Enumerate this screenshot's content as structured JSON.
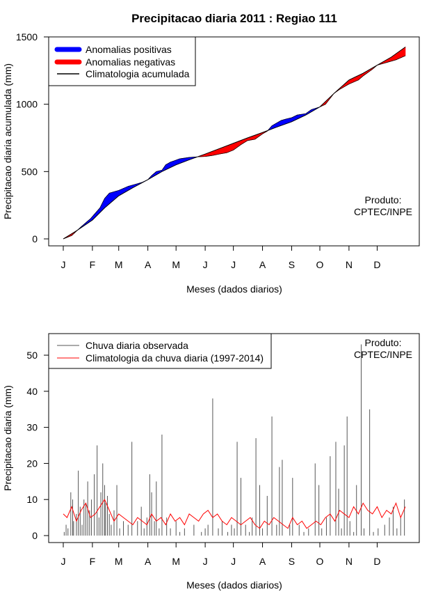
{
  "chart_data": [
    {
      "type": "area",
      "title": "Precipitacao diaria 2011 : Regiao 111",
      "xlabel": "Meses (dados diarios)",
      "ylabel": "Precipitacao diaria acumulada (mm)",
      "xlim": [
        1,
        365
      ],
      "ylim": [
        0,
        1500
      ],
      "yticks": [
        0,
        500,
        1000,
        1500
      ],
      "x_tick_labels": [
        "J",
        "F",
        "M",
        "A",
        "M",
        "J",
        "J",
        "A",
        "S",
        "O",
        "N",
        "D"
      ],
      "x_tick_days": [
        1,
        32,
        60,
        91,
        121,
        152,
        182,
        213,
        244,
        274,
        305,
        335
      ],
      "legend_position": "top-left",
      "legend": [
        {
          "label": "Anomalias positivas",
          "color": "#0000ff",
          "style": "thick-line"
        },
        {
          "label": "Anomalias negativas",
          "color": "#ff0000",
          "style": "thick-line"
        },
        {
          "label": "Climatologia acumulada",
          "color": "#000000",
          "style": "line"
        }
      ],
      "annotation": [
        "Produto:",
        "CPTEC/INPE"
      ],
      "series": [
        {
          "name": "Climatologia acumulada",
          "x": [
            1,
            15,
            32,
            45,
            60,
            75,
            91,
            106,
            121,
            136,
            152,
            167,
            182,
            197,
            213,
            228,
            244,
            259,
            274,
            289,
            305,
            320,
            335,
            350,
            365
          ],
          "values": [
            0,
            60,
            140,
            230,
            320,
            380,
            440,
            500,
            550,
            590,
            630,
            670,
            710,
            750,
            790,
            830,
            870,
            920,
            980,
            1080,
            1180,
            1230,
            1290,
            1350,
            1425
          ]
        },
        {
          "name": "Precipitacao observada acumulada",
          "x": [
            1,
            10,
            20,
            30,
            40,
            45,
            50,
            60,
            70,
            75,
            85,
            91,
            95,
            100,
            106,
            110,
            115,
            121,
            125,
            135,
            145,
            152,
            155,
            160,
            167,
            175,
            182,
            190,
            197,
            205,
            213,
            218,
            223,
            228,
            233,
            238,
            244,
            250,
            259,
            265,
            274,
            280,
            289,
            295,
            305,
            315,
            320,
            330,
            335,
            345,
            355,
            365
          ],
          "values": [
            0,
            25,
            90,
            150,
            230,
            300,
            340,
            360,
            390,
            400,
            420,
            440,
            470,
            500,
            510,
            550,
            570,
            585,
            595,
            605,
            610,
            612,
            615,
            620,
            630,
            640,
            660,
            700,
            730,
            740,
            780,
            800,
            840,
            860,
            880,
            890,
            900,
            920,
            930,
            960,
            980,
            1000,
            1080,
            1110,
            1150,
            1180,
            1210,
            1260,
            1290,
            1310,
            1330,
            1360
          ]
        }
      ]
    },
    {
      "type": "line",
      "xlabel": "Meses (dados diarios)",
      "ylabel": "Precipitacao diaria (mm)",
      "xlim": [
        1,
        365
      ],
      "ylim": [
        0,
        55
      ],
      "yticks": [
        0,
        10,
        20,
        30,
        40,
        50
      ],
      "x_tick_labels": [
        "J",
        "F",
        "M",
        "A",
        "M",
        "J",
        "J",
        "A",
        "S",
        "O",
        "N",
        "D"
      ],
      "x_tick_days": [
        1,
        32,
        60,
        91,
        121,
        152,
        182,
        213,
        244,
        274,
        305,
        335
      ],
      "legend_position": "top-left",
      "legend": [
        {
          "label": "Chuva diaria observada",
          "color": "#555555"
        },
        {
          "label": "Climatologia da chuva diaria (1997-2014)",
          "color": "#ff0000"
        }
      ],
      "annotation": [
        "Produto:",
        "CPTEC/INPE"
      ],
      "series": [
        {
          "name": "Chuva diaria observada",
          "style": "spikes",
          "x": [
            2,
            4,
            6,
            9,
            11,
            12,
            15,
            17,
            19,
            21,
            23,
            25,
            27,
            29,
            31,
            34,
            37,
            39,
            41,
            43,
            45,
            46,
            48,
            50,
            52,
            55,
            58,
            61,
            65,
            70,
            74,
            80,
            84,
            87,
            90,
            93,
            95,
            98,
            100,
            103,
            106,
            111,
            115,
            121,
            125,
            130,
            140,
            148,
            152,
            155,
            160,
            166,
            170,
            176,
            180,
            183,
            186,
            190,
            195,
            199,
            202,
            206,
            210,
            213,
            218,
            223,
            228,
            231,
            234,
            242,
            245,
            252,
            257,
            262,
            269,
            273,
            276,
            281,
            285,
            291,
            294,
            297,
            300,
            303,
            306,
            310,
            313,
            318,
            321,
            327,
            331,
            336,
            343,
            348,
            352,
            356,
            360,
            364
          ],
          "values": [
            1,
            3,
            2,
            12,
            10,
            4,
            6,
            18,
            8,
            3,
            10,
            9,
            15,
            7,
            10,
            17,
            25,
            5,
            12,
            20,
            14,
            9,
            11,
            6,
            3,
            7,
            14,
            2,
            4,
            3,
            26,
            4,
            8,
            2,
            5,
            17,
            12,
            4,
            15,
            2,
            28,
            5,
            2,
            4,
            1,
            2,
            3,
            1,
            2,
            3,
            38,
            2,
            4,
            1,
            3,
            2,
            26,
            16,
            3,
            1,
            5,
            27,
            14,
            2,
            11,
            33,
            3,
            19,
            21,
            3,
            16,
            3,
            1,
            2,
            20,
            14,
            2,
            5,
            22,
            26,
            13,
            2,
            25,
            33,
            4,
            1,
            14,
            53,
            2,
            35,
            1,
            2,
            3,
            5,
            8,
            2,
            5,
            10
          ]
        },
        {
          "name": "Climatologia da chuva diaria (1997-2014)",
          "style": "line",
          "x": [
            1,
            5,
            10,
            15,
            20,
            25,
            30,
            35,
            40,
            45,
            50,
            55,
            60,
            65,
            70,
            75,
            80,
            85,
            90,
            95,
            100,
            105,
            110,
            115,
            120,
            125,
            130,
            135,
            140,
            145,
            150,
            155,
            160,
            165,
            170,
            175,
            180,
            185,
            190,
            195,
            200,
            205,
            210,
            215,
            220,
            225,
            230,
            235,
            240,
            245,
            250,
            255,
            260,
            265,
            270,
            275,
            280,
            285,
            290,
            295,
            300,
            305,
            310,
            315,
            320,
            325,
            330,
            335,
            340,
            345,
            350,
            355,
            360,
            365
          ],
          "values": [
            6,
            5,
            8,
            4,
            7,
            9,
            5,
            6,
            8,
            10,
            7,
            4,
            6,
            5,
            4,
            3,
            5,
            4,
            3,
            6,
            4,
            5,
            3,
            6,
            4,
            5,
            3,
            6,
            5,
            4,
            6,
            7,
            5,
            6,
            4,
            3,
            5,
            4,
            3,
            4,
            5,
            3,
            2,
            4,
            3,
            5,
            4,
            3,
            2,
            5,
            3,
            4,
            2,
            3,
            4,
            3,
            5,
            6,
            4,
            7,
            6,
            5,
            8,
            6,
            9,
            7,
            6,
            8,
            5,
            7,
            6,
            9,
            5,
            8
          ]
        }
      ]
    }
  ]
}
